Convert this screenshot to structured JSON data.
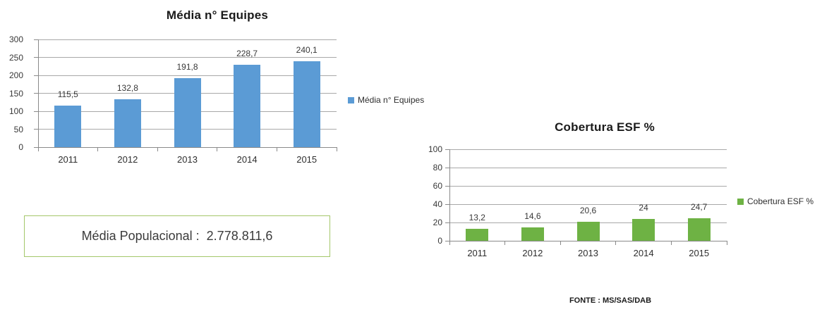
{
  "page": {
    "background": "#FFFFFF"
  },
  "chart_data": [
    {
      "type": "bar",
      "title": "Média n° Equipes",
      "legend": {
        "label": "Média n° Equipes",
        "position": "right"
      },
      "categories": [
        "2011",
        "2012",
        "2013",
        "2014",
        "2015"
      ],
      "values": [
        115.5,
        132.8,
        191.8,
        228.7,
        240.1
      ],
      "value_labels": [
        "115,5",
        "132,8",
        "191,8",
        "228,7",
        "240,1"
      ],
      "xlabel": "",
      "ylabel": "",
      "ylim": [
        0,
        300
      ],
      "ytick_interval": 50,
      "ytick_labels": [
        "0",
        "50",
        "100",
        "150",
        "200",
        "250",
        "300"
      ],
      "grid": true,
      "bar_color": "#5B9BD5"
    },
    {
      "type": "bar",
      "title": "Cobertura ESF %",
      "legend": {
        "label": "Cobertura ESF %",
        "position": "right"
      },
      "categories": [
        "2011",
        "2012",
        "2013",
        "2014",
        "2015"
      ],
      "values": [
        13.2,
        14.6,
        20.6,
        24,
        24.7
      ],
      "value_labels": [
        "13,2",
        "14,6",
        "20,6",
        "24",
        "24,7"
      ],
      "xlabel": "",
      "ylabel": "",
      "ylim": [
        0,
        100
      ],
      "ytick_interval": 20,
      "ytick_labels": [
        "0",
        "20",
        "40",
        "60",
        "80",
        "100"
      ],
      "grid": true,
      "bar_color": "#6EB244"
    }
  ],
  "population_box": {
    "text": "Média Populacional :  2.778.811,6",
    "border_color": "#A4C76A"
  },
  "source_note": {
    "text": "FONTE : MS/SAS/DAB"
  },
  "colors": {
    "gridline": "#A8A8A8",
    "axis": "#8A8A8A",
    "label_text": "#383838",
    "title_text": "#1A1A1A"
  }
}
